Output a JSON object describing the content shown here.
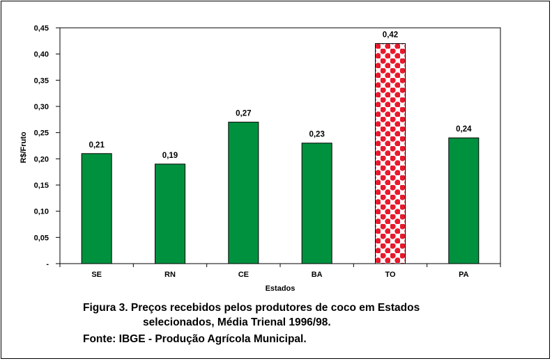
{
  "chart_data": {
    "type": "bar",
    "xlabel": "Estados",
    "ylabel": "R$/Fruto",
    "categories": [
      "SE",
      "RN",
      "CE",
      "BA",
      "TO",
      "PA"
    ],
    "values": [
      0.21,
      0.19,
      0.27,
      0.23,
      0.42,
      0.24
    ],
    "value_labels": [
      "0,21",
      "0,19",
      "0,27",
      "0,23",
      "0,42",
      "0,24"
    ],
    "ylim": [
      0,
      0.45
    ],
    "y_ticks": [
      0,
      0.05,
      0.1,
      0.15,
      0.2,
      0.25,
      0.3,
      0.35,
      0.4,
      0.45
    ],
    "y_tick_labels": [
      "-",
      "0,05",
      "0,10",
      "0,15",
      "0,20",
      "0,25",
      "0,30",
      "0,35",
      "0,40",
      "0,45"
    ],
    "grid": false,
    "legend": "none",
    "bar_color": "#00913f",
    "highlight": {
      "category": "TO",
      "pattern": "red-polka-dots",
      "dot_color": "#e8192c",
      "background": "#ffffff"
    }
  },
  "caption": {
    "line1": "Figura 3. Preços recebidos pelos produtores de coco em Estados",
    "line2": "selecionados, Média Trienal 1996/98.",
    "line3": "Fonte: IBGE - Produção Agrícola Municipal."
  }
}
